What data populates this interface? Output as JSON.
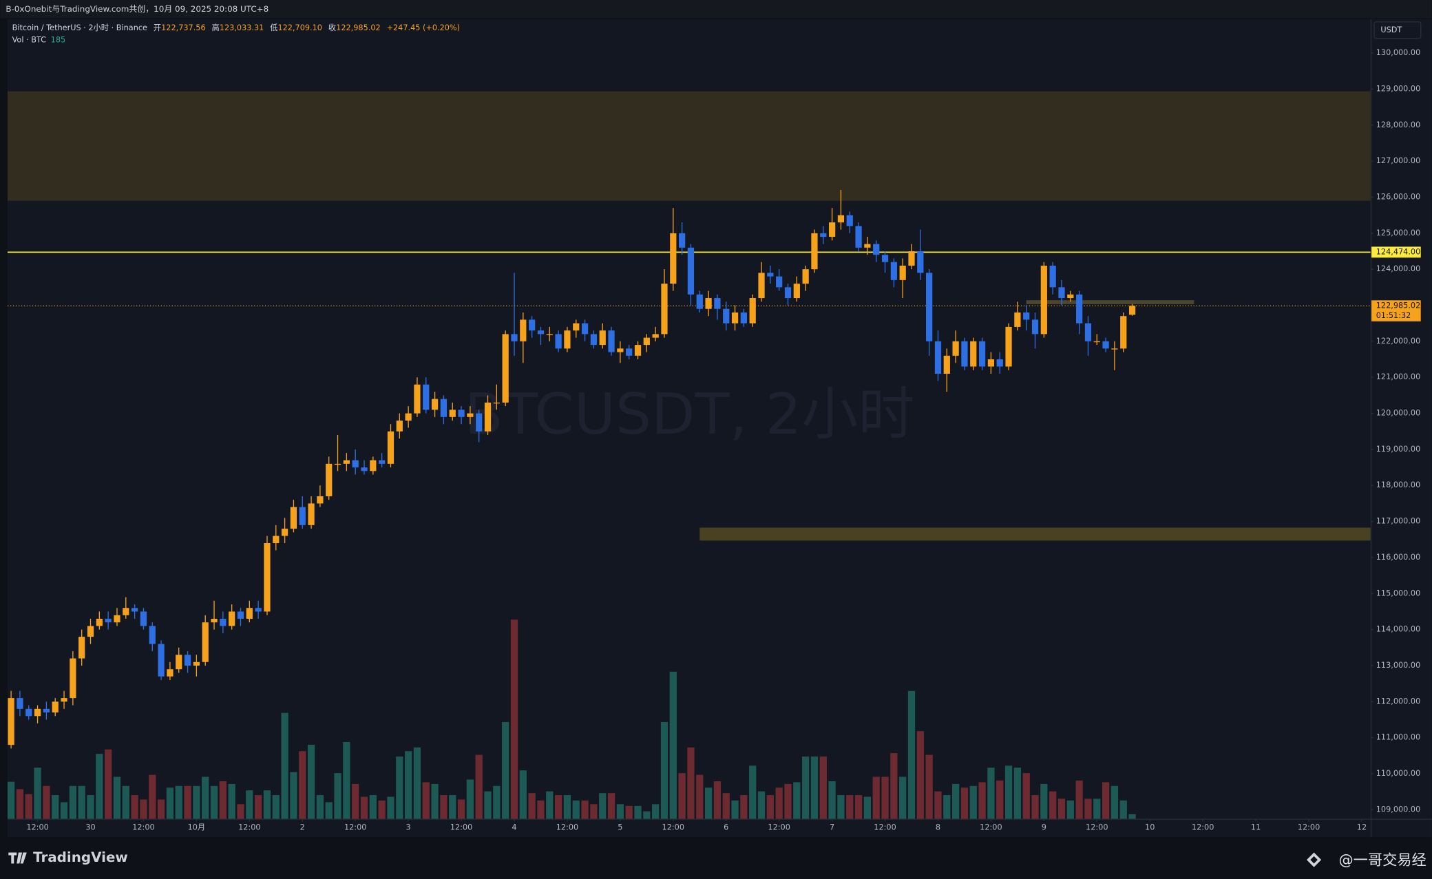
{
  "header": {
    "title": "B-0xOnebit与TradingView.com共创，10月 09, 2025 20:08 UTC+8"
  },
  "legend": {
    "symbol": "Bitcoin / TetherUS · 2小时 · Binance",
    "ohlc": [
      {
        "label": "开",
        "value": "122,737.56"
      },
      {
        "label": "高",
        "value": "123,033.31"
      },
      {
        "label": "低",
        "value": "122,709.10"
      },
      {
        "label": "收",
        "value": "122,985.02"
      }
    ],
    "change": "+247.45 (+0.20%)",
    "volume_label": "Vol · BTC",
    "volume_value": "185"
  },
  "chart_data": {
    "type": "candlestick",
    "watermark": "BTCUSDT, 2小时",
    "currency": "USDT",
    "up_color": "#f7a21b",
    "down_color": "#2f6fe4",
    "volume_up_color": "#1d5a56",
    "volume_down_color": "#6e2a31",
    "xlim": [
      -0.4,
      154
    ],
    "ylim": [
      108750,
      130940
    ],
    "vol_ylim": [
      0,
      32400
    ],
    "grid": false,
    "yticks": [
      {
        "value": 109000,
        "label": "109,000.00"
      },
      {
        "value": 110000,
        "label": "110,000.00"
      },
      {
        "value": 111000,
        "label": "111,000.00"
      },
      {
        "value": 112000,
        "label": "112,000.00"
      },
      {
        "value": 113000,
        "label": "113,000.00"
      },
      {
        "value": 114000,
        "label": "114,000.00"
      },
      {
        "value": 115000,
        "label": "115,000.00"
      },
      {
        "value": 116000,
        "label": "116,000.00"
      },
      {
        "value": 117000,
        "label": "117,000.00"
      },
      {
        "value": 118000,
        "label": "118,000.00"
      },
      {
        "value": 119000,
        "label": "119,000.00"
      },
      {
        "value": 120000,
        "label": "120,000.00"
      },
      {
        "value": 121000,
        "label": "121,000.00"
      },
      {
        "value": 122000,
        "label": "122,000.00"
      },
      {
        "value": 123000,
        "label": "123,000.00"
      },
      {
        "value": 124000,
        "label": "124,000.00"
      },
      {
        "value": 125000,
        "label": "125,000.00"
      },
      {
        "value": 126000,
        "label": "126,000.00"
      },
      {
        "value": 127000,
        "label": "127,000.00"
      },
      {
        "value": 128000,
        "label": "128,000.00"
      },
      {
        "value": 129000,
        "label": "129,000.00"
      },
      {
        "value": 130000,
        "label": "130,000.00"
      }
    ],
    "xticks": [
      {
        "value": 3,
        "label": "12:00"
      },
      {
        "value": 9,
        "label": "30"
      },
      {
        "value": 15,
        "label": "12:00"
      },
      {
        "value": 21,
        "label": "10月"
      },
      {
        "value": 27,
        "label": "12:00"
      },
      {
        "value": 33,
        "label": "2"
      },
      {
        "value": 39,
        "label": "12:00"
      },
      {
        "value": 45,
        "label": "3"
      },
      {
        "value": 51,
        "label": "12:00"
      },
      {
        "value": 57,
        "label": "4"
      },
      {
        "value": 63,
        "label": "12:00"
      },
      {
        "value": 69,
        "label": "5"
      },
      {
        "value": 75,
        "label": "12:00"
      },
      {
        "value": 81,
        "label": "6"
      },
      {
        "value": 87,
        "label": "12:00"
      },
      {
        "value": 93,
        "label": "7"
      },
      {
        "value": 99,
        "label": "12:00"
      },
      {
        "value": 105,
        "label": "8"
      },
      {
        "value": 111,
        "label": "12:00"
      },
      {
        "value": 117,
        "label": "9"
      },
      {
        "value": 123,
        "label": "12:00"
      },
      {
        "value": 129,
        "label": "10"
      },
      {
        "value": 135,
        "label": "12:00"
      },
      {
        "value": 141,
        "label": "11"
      },
      {
        "value": 147,
        "label": "12:00"
      },
      {
        "value": 153,
        "label": "12"
      }
    ],
    "zones": [
      {
        "from": 125900,
        "to": 128940,
        "color": "#332d1f"
      },
      {
        "from": 116470,
        "to": 116830,
        "x_start": 78,
        "color": "#4a4120"
      },
      {
        "from": 123030,
        "to": 123140,
        "x_start": 115,
        "x_end": 134,
        "color": "#4a4630"
      }
    ],
    "hline": {
      "value": 124474,
      "label": "124,474.00",
      "color": "#ffeb3b"
    },
    "last_price": {
      "value": 122985.02,
      "label": "122,985.02",
      "countdown": "01:51:32",
      "color": "#f7a21b"
    },
    "candles": [
      [
        110800,
        112300,
        110700,
        112100
      ],
      [
        112100,
        112300,
        111600,
        111800
      ],
      [
        111800,
        111900,
        111500,
        111600
      ],
      [
        111600,
        111900,
        111400,
        111800
      ],
      [
        111800,
        112000,
        111500,
        111700
      ],
      [
        111700,
        112100,
        111600,
        112000
      ],
      [
        112000,
        112300,
        111800,
        112100
      ],
      [
        112100,
        113400,
        111900,
        113200
      ],
      [
        113200,
        114000,
        113000,
        113800
      ],
      [
        113800,
        114300,
        113600,
        114100
      ],
      [
        114100,
        114500,
        114000,
        114300
      ],
      [
        114300,
        114500,
        114000,
        114200
      ],
      [
        114200,
        114600,
        114100,
        114400
      ],
      [
        114400,
        114900,
        114300,
        114600
      ],
      [
        114600,
        114700,
        114300,
        114500
      ],
      [
        114500,
        114600,
        114000,
        114100
      ],
      [
        114100,
        114200,
        113400,
        113600
      ],
      [
        113600,
        113700,
        112600,
        112700
      ],
      [
        112700,
        113100,
        112600,
        112900
      ],
      [
        112900,
        113500,
        112800,
        113300
      ],
      [
        113300,
        113400,
        112800,
        113000
      ],
      [
        113000,
        113300,
        112700,
        113100
      ],
      [
        113100,
        114400,
        113000,
        114200
      ],
      [
        114200,
        114800,
        114000,
        114300
      ],
      [
        114300,
        114500,
        113900,
        114100
      ],
      [
        114100,
        114700,
        114000,
        114500
      ],
      [
        114500,
        114600,
        114100,
        114300
      ],
      [
        114300,
        114800,
        114200,
        114600
      ],
      [
        114600,
        114800,
        114300,
        114500
      ],
      [
        114500,
        116600,
        114400,
        116400
      ],
      [
        116400,
        116900,
        116200,
        116600
      ],
      [
        116600,
        117100,
        116400,
        116800
      ],
      [
        116800,
        117600,
        116700,
        117400
      ],
      [
        117400,
        117700,
        116800,
        116900
      ],
      [
        116900,
        117700,
        116800,
        117500
      ],
      [
        117500,
        118000,
        117400,
        117700
      ],
      [
        117700,
        118800,
        117600,
        118600
      ],
      [
        118600,
        119400,
        118400,
        118600
      ],
      [
        118600,
        118900,
        118400,
        118700
      ],
      [
        118700,
        119000,
        118300,
        118500
      ],
      [
        118500,
        118700,
        118300,
        118400
      ],
      [
        118400,
        118800,
        118300,
        118700
      ],
      [
        118700,
        118900,
        118500,
        118600
      ],
      [
        118600,
        119700,
        118500,
        119500
      ],
      [
        119500,
        120000,
        119300,
        119800
      ],
      [
        119800,
        120200,
        119600,
        120000
      ],
      [
        120000,
        121000,
        119900,
        120800
      ],
      [
        120800,
        121000,
        120000,
        120100
      ],
      [
        120100,
        120600,
        119900,
        120400
      ],
      [
        120400,
        120500,
        119700,
        119900
      ],
      [
        119900,
        120300,
        119800,
        120100
      ],
      [
        120100,
        120200,
        119700,
        119900
      ],
      [
        119900,
        120200,
        119700,
        120000
      ],
      [
        120000,
        120100,
        119200,
        119500
      ],
      [
        119500,
        120500,
        119400,
        120300
      ],
      [
        120300,
        120800,
        120100,
        120300
      ],
      [
        120300,
        122300,
        120200,
        122200
      ],
      [
        122200,
        123900,
        121600,
        122000
      ],
      [
        122000,
        122800,
        121400,
        122600
      ],
      [
        122600,
        122700,
        122100,
        122300
      ],
      [
        122300,
        122400,
        121900,
        122200
      ],
      [
        122200,
        122400,
        122000,
        122200
      ],
      [
        122200,
        122300,
        121700,
        121800
      ],
      [
        121800,
        122400,
        121700,
        122300
      ],
      [
        122300,
        122600,
        122100,
        122500
      ],
      [
        122500,
        122600,
        122000,
        122200
      ],
      [
        122200,
        122300,
        121800,
        121900
      ],
      [
        121900,
        122500,
        121800,
        122300
      ],
      [
        122300,
        122400,
        121600,
        121700
      ],
      [
        121700,
        122000,
        121400,
        121800
      ],
      [
        121800,
        121900,
        121500,
        121600
      ],
      [
        121600,
        122000,
        121500,
        121900
      ],
      [
        121900,
        122200,
        121700,
        122100
      ],
      [
        122100,
        122400,
        122000,
        122200
      ],
      [
        122200,
        124000,
        122100,
        123600
      ],
      [
        123600,
        125700,
        123400,
        125000
      ],
      [
        125000,
        125300,
        124400,
        124600
      ],
      [
        124600,
        124700,
        123000,
        123300
      ],
      [
        123300,
        123400,
        122800,
        122900
      ],
      [
        122900,
        123400,
        122700,
        123200
      ],
      [
        123200,
        123300,
        122600,
        122900
      ],
      [
        122900,
        123100,
        122300,
        122500
      ],
      [
        122500,
        123000,
        122300,
        122800
      ],
      [
        122800,
        122900,
        122400,
        122500
      ],
      [
        122500,
        123300,
        122400,
        123200
      ],
      [
        123200,
        124200,
        123100,
        123900
      ],
      [
        123900,
        124100,
        123600,
        123800
      ],
      [
        123800,
        124000,
        123400,
        123500
      ],
      [
        123500,
        123600,
        123000,
        123200
      ],
      [
        123200,
        123800,
        123100,
        123600
      ],
      [
        123600,
        124100,
        123400,
        124000
      ],
      [
        124000,
        125100,
        123900,
        125000
      ],
      [
        125000,
        125200,
        124700,
        124900
      ],
      [
        124900,
        125700,
        124800,
        125300
      ],
      [
        125300,
        126200,
        125100,
        125500
      ],
      [
        125500,
        125600,
        125000,
        125200
      ],
      [
        125200,
        125300,
        124500,
        124600
      ],
      [
        124600,
        124900,
        124400,
        124700
      ],
      [
        124700,
        124800,
        124200,
        124400
      ],
      [
        124400,
        124500,
        123900,
        124200
      ],
      [
        124200,
        124300,
        123500,
        123700
      ],
      [
        123700,
        124300,
        123200,
        124100
      ],
      [
        124100,
        124700,
        124000,
        124500
      ],
      [
        124500,
        125100,
        123700,
        123900
      ],
      [
        123900,
        124000,
        121600,
        122000
      ],
      [
        122000,
        122300,
        120900,
        121100
      ],
      [
        121100,
        121800,
        120600,
        121600
      ],
      [
        121600,
        122300,
        121400,
        122000
      ],
      [
        122000,
        122100,
        121200,
        121300
      ],
      [
        121300,
        122100,
        121200,
        122000
      ],
      [
        122000,
        122100,
        121200,
        121300
      ],
      [
        121300,
        121700,
        121100,
        121500
      ],
      [
        121500,
        121700,
        121100,
        121300
      ],
      [
        121300,
        122500,
        121200,
        122400
      ],
      [
        122400,
        123100,
        122300,
        122800
      ],
      [
        122800,
        123000,
        122300,
        122600
      ],
      [
        122600,
        122800,
        121800,
        122200
      ],
      [
        122200,
        124200,
        122100,
        124100
      ],
      [
        124100,
        124200,
        123300,
        123500
      ],
      [
        123500,
        123700,
        123000,
        123200
      ],
      [
        123200,
        123400,
        123100,
        123300
      ],
      [
        123300,
        123400,
        122200,
        122500
      ],
      [
        122500,
        122700,
        121600,
        122000
      ],
      [
        122000,
        122200,
        121900,
        122000
      ],
      [
        122000,
        122100,
        121700,
        121800
      ],
      [
        121800,
        122000,
        121200,
        121800
      ],
      [
        121800,
        122800,
        121700,
        122700
      ],
      [
        122737.56,
        123033.31,
        122709.1,
        122985.02
      ]
    ],
    "volumes": [
      1500,
      1200,
      1000,
      2070,
      1330,
      960,
      670,
      1330,
      1330,
      960,
      2630,
      2810,
      1700,
      1330,
      960,
      780,
      1780,
      780,
      1260,
      1330,
      1330,
      1330,
      1700,
      1330,
      1520,
      1410,
      590,
      1150,
      960,
      1150,
      960,
      4290,
      1890,
      2740,
      3000,
      960,
      670,
      1850,
      3110,
      1410,
      890,
      960,
      740,
      890,
      2520,
      2740,
      2890,
      1480,
      1410,
      960,
      960,
      780,
      1590,
      2590,
      1110,
      1330,
      3920,
      8070,
      1960,
      1040,
      740,
      1110,
      960,
      960,
      740,
      740,
      590,
      1040,
      1040,
      590,
      520,
      520,
      300,
      590,
      3920,
      5960,
      1850,
      2890,
      1780,
      1260,
      1520,
      1040,
      740,
      960,
      2150,
      1110,
      960,
      1260,
      1410,
      1480,
      2520,
      2520,
      2520,
      1520,
      960,
      960,
      960,
      890,
      1700,
      1700,
      2660,
      1700,
      5180,
      3550,
      2590,
      1110,
      960,
      1410,
      1260,
      1330,
      1480,
      2070,
      1550,
      2150,
      2070,
      1850,
      960,
      1410,
      1110,
      810,
      740,
      1550,
      810,
      810,
      1480,
      1330,
      740,
      185
    ]
  },
  "footer": {
    "brand": "TradingView",
    "credit": "@一哥交易经"
  }
}
